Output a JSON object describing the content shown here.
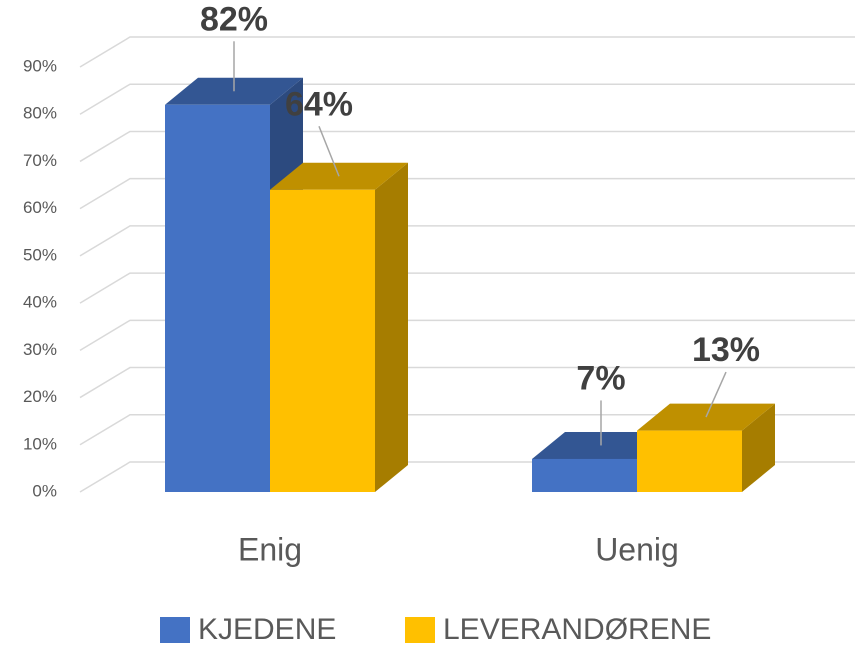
{
  "chart_data": {
    "type": "bar3d",
    "categories": [
      "Enig",
      "Uenig"
    ],
    "series": [
      {
        "name": "KJEDENE",
        "color": "#4472c4",
        "values": [
          82,
          7
        ],
        "value_labels": [
          "82%",
          "7%"
        ]
      },
      {
        "name": "LEVERANDØRENE",
        "color": "#ffc000",
        "values": [
          64,
          13
        ],
        "value_labels": [
          "64%",
          "13%"
        ]
      }
    ],
    "ylim": [
      0,
      90
    ],
    "yticks": [
      {
        "value": 0,
        "label": "0%"
      },
      {
        "value": 10,
        "label": "10%"
      },
      {
        "value": 20,
        "label": "20%"
      },
      {
        "value": 30,
        "label": "30%"
      },
      {
        "value": 40,
        "label": "40%"
      },
      {
        "value": 50,
        "label": "50%"
      },
      {
        "value": 60,
        "label": "60%"
      },
      {
        "value": 70,
        "label": "70%"
      },
      {
        "value": 80,
        "label": "80%"
      },
      {
        "value": 90,
        "label": "90%"
      }
    ],
    "grid": true,
    "legend": "bottom"
  }
}
